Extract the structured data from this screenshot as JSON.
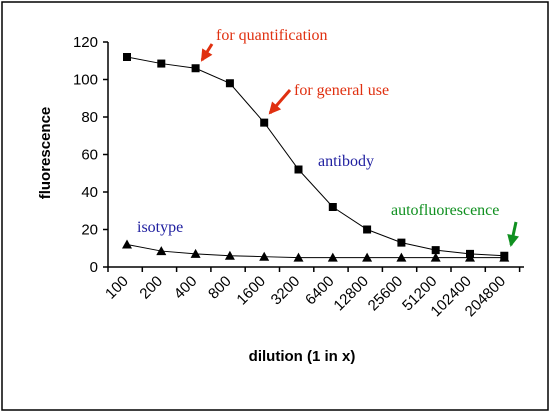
{
  "chart_data": {
    "type": "line",
    "xlabel": "dilution (1 in x)",
    "ylabel": "fluorescence",
    "ylim": [
      0,
      120
    ],
    "y_ticks": [
      0,
      20,
      40,
      60,
      80,
      100,
      120
    ],
    "grid": false,
    "categories": [
      "100",
      "200",
      "400",
      "800",
      "1600",
      "3200",
      "6400",
      "12800",
      "25600",
      "51200",
      "102400",
      "204800"
    ],
    "series": [
      {
        "marker": "square",
        "values": [
          112,
          108.5,
          106,
          98,
          77,
          52,
          32,
          20,
          13,
          9,
          7,
          6
        ]
      },
      {
        "marker": "triangle",
        "values": [
          12,
          8.5,
          7,
          6,
          5.5,
          5,
          5,
          5,
          5,
          5,
          5,
          5
        ]
      }
    ],
    "annotations": [
      {
        "text": "for quantification",
        "color": "#e03010",
        "arrow": true
      },
      {
        "text": "for general use",
        "color": "#e03010",
        "arrow": true
      },
      {
        "text": "antibody",
        "color": "#2020a0",
        "arrow": false
      },
      {
        "text": "isotype",
        "color": "#2020a0",
        "arrow": false
      },
      {
        "text": "autofluorescence",
        "color": "#109020",
        "arrow": true
      }
    ]
  },
  "colors": {
    "line": "#000000",
    "marker": "#000000",
    "frame": "#000000"
  }
}
